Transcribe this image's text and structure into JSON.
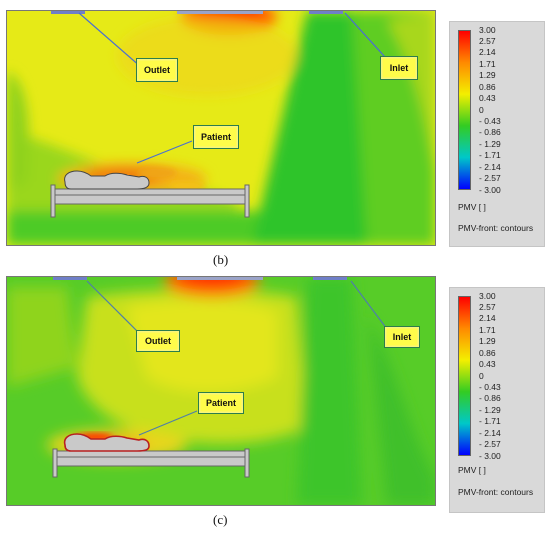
{
  "panels": [
    {
      "id": "b",
      "caption": "(b)",
      "labels": {
        "outlet": "Outlet",
        "inlet": "Inlet",
        "patient": "Patient"
      }
    },
    {
      "id": "c",
      "caption": "(c)",
      "labels": {
        "outlet": "Outlet",
        "inlet": "Inlet",
        "patient": "Patient"
      }
    }
  ],
  "legend": {
    "ticks": [
      "3.00",
      "2.57",
      "2.14",
      "1.71",
      "1.29",
      "0.86",
      "0.43",
      "0",
      "- 0.43",
      "- 0.86",
      "- 1.29",
      "- 1.71",
      "- 2.14",
      "- 2.57",
      "- 3.00"
    ],
    "unit_label": "PMV [ ]",
    "plot_label": "PMV-front: contours",
    "colors": [
      "#ff0000",
      "#ff8a00",
      "#f3ef00",
      "#33cc22",
      "#00c8c8",
      "#0000ff"
    ]
  }
}
